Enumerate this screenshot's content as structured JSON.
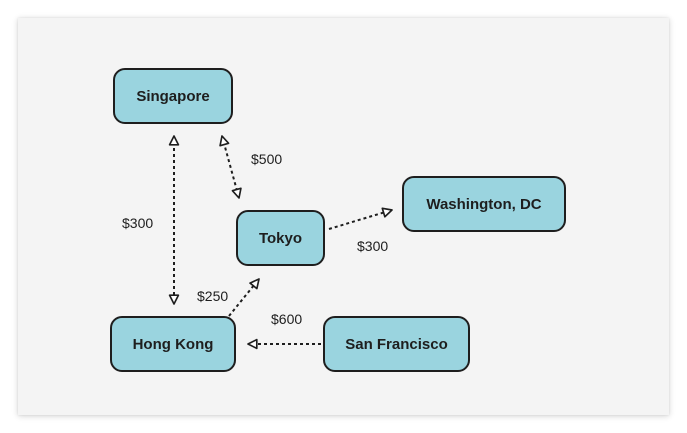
{
  "nodes": {
    "singapore": "Singapore",
    "tokyo": "Tokyo",
    "washington": "Washington, DC",
    "hong_kong": "Hong Kong",
    "san_francisco": "San Francisco"
  },
  "edges": {
    "singapore_hongkong": "$300",
    "singapore_tokyo": "$500",
    "tokyo_washington": "$300",
    "hongkong_tokyo": "$250",
    "sanfrancisco_hongkong": "$600"
  },
  "colors": {
    "node_fill": "#9ad4df",
    "stroke": "#1e1e1e",
    "background": "#f4f4f4"
  }
}
